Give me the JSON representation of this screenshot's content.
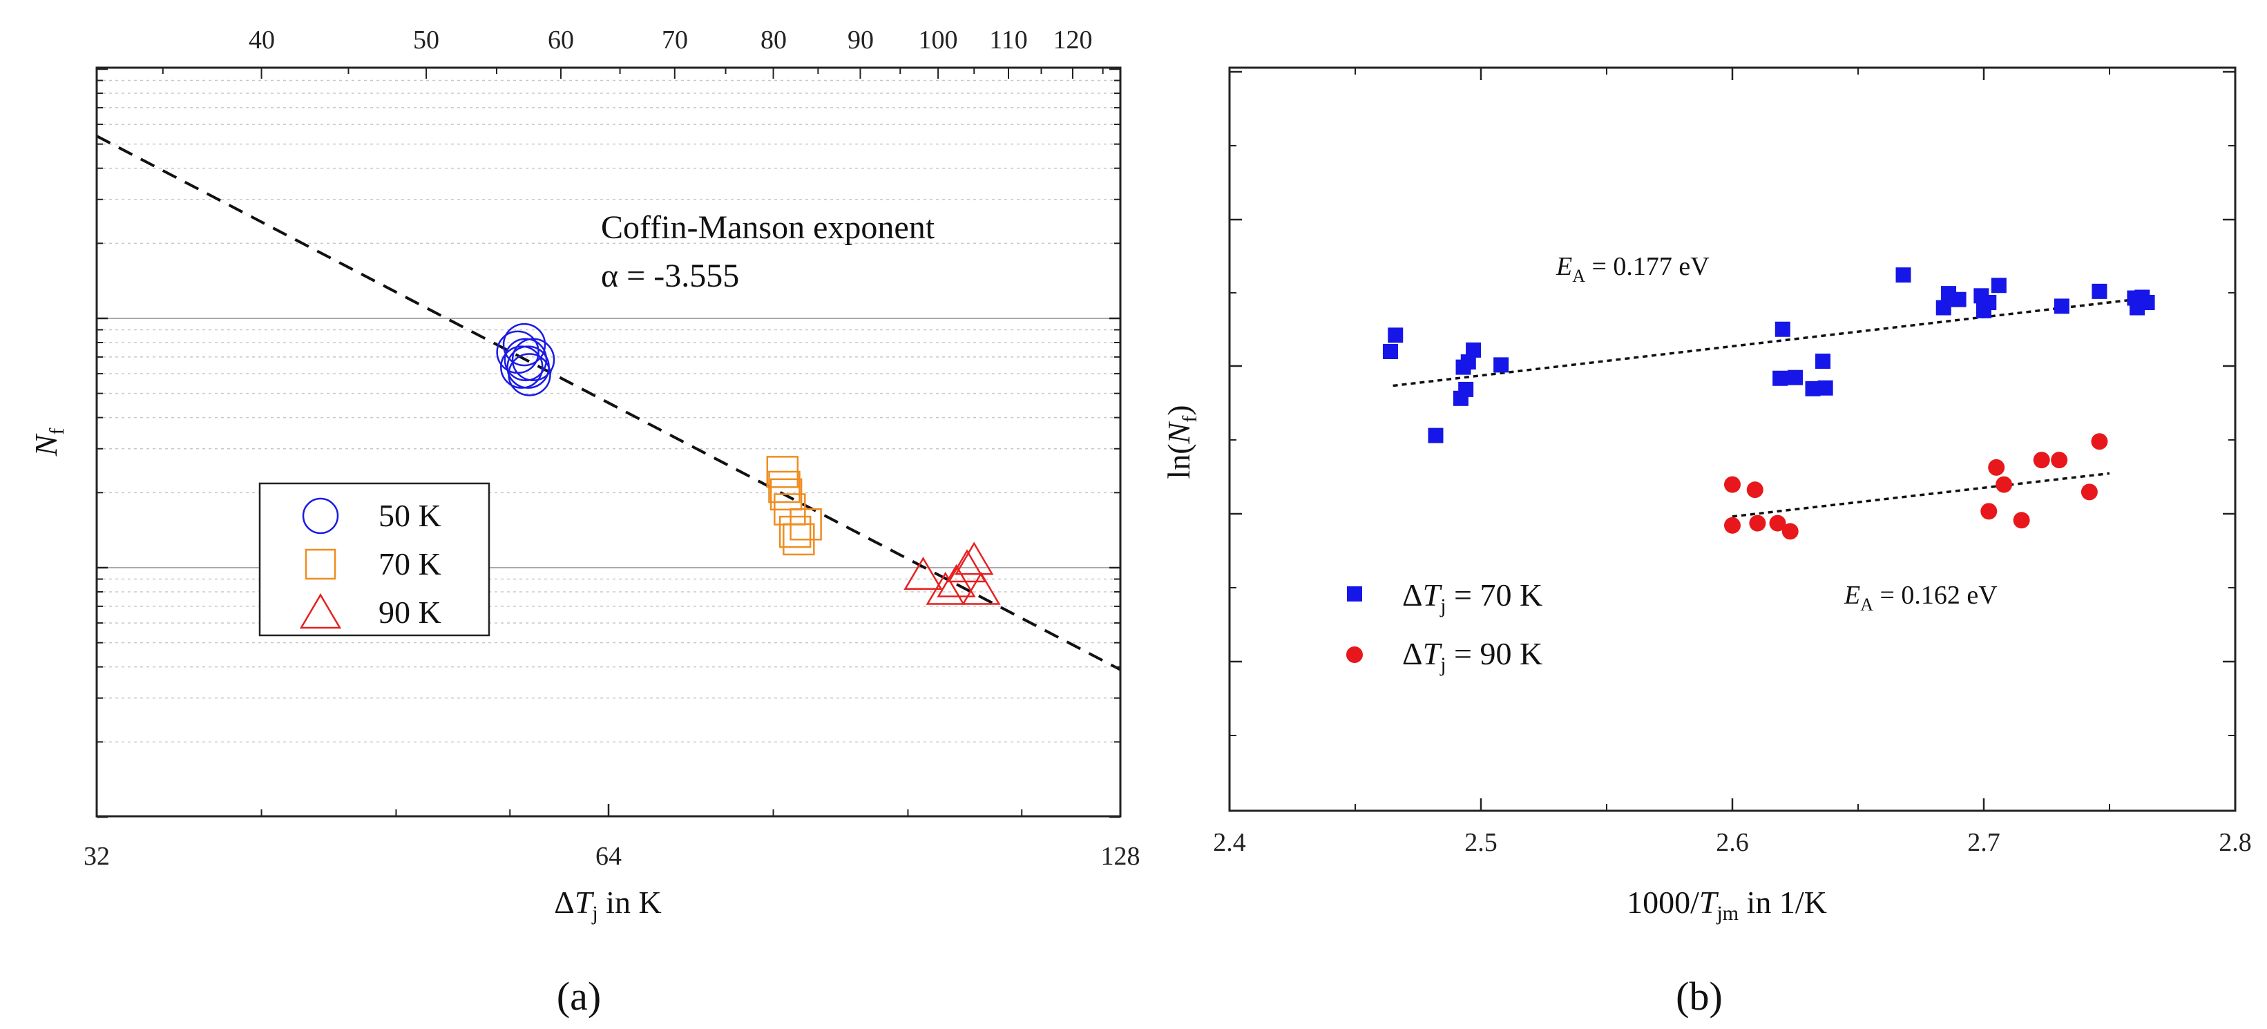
{
  "colors": {
    "blue": "#1a1ae6",
    "orange": "#f08c1e",
    "red": "#e62020"
  },
  "chart_data": [
    {
      "panel_label": "(a)",
      "type": "scatter",
      "title": "",
      "xlabel": "ΔTj in K",
      "ylabel": "Nf",
      "x_scale": "log2",
      "xlim": [
        32,
        128
      ],
      "x_ticks": [
        "32",
        "64",
        "128"
      ],
      "top_x_ticks": [
        "40",
        "50",
        "60",
        "70",
        "80",
        "90",
        "100",
        "110",
        "120"
      ],
      "y_tick_labels_shown": false,
      "annotation": {
        "line1": "Coffin-Manson exponent",
        "line2": "α = -3.555"
      },
      "fit_exponent": -3.555,
      "legend": {
        "position": "left-center",
        "entries": [
          "50 K",
          "70 K",
          "90 K"
        ]
      },
      "series": [
        {
          "name": "50 K",
          "marker": "circle",
          "color": "blue",
          "x": [
            56.6,
            56.9,
            57.2,
            57.5,
            57.8,
            57.1,
            57.4
          ],
          "y_rel": [
            0.62,
            0.6,
            0.61,
            0.59,
            0.61,
            0.63,
            0.6
          ]
        },
        {
          "name": "70 K",
          "marker": "square",
          "color": "orange",
          "x": [
            81.0,
            81.2,
            81.8,
            82.4,
            82.8,
            83.6,
            81.4
          ],
          "y_rel": [
            0.46,
            0.44,
            0.41,
            0.38,
            0.37,
            0.39,
            0.43
          ]
        },
        {
          "name": "90 K",
          "marker": "triangle",
          "color": "red",
          "x": [
            98.0,
            101.0,
            102.5,
            104.0,
            105.0,
            106.0
          ],
          "y_rel": [
            0.32,
            0.3,
            0.31,
            0.33,
            0.34,
            0.3
          ]
        }
      ]
    },
    {
      "panel_label": "(b)",
      "type": "scatter",
      "title": "",
      "xlabel": "1000/Tjm in 1/K",
      "ylabel": "ln(Nf)",
      "xlim": [
        2.4,
        2.8
      ],
      "x_ticks": [
        "2.4",
        "2.5",
        "2.6",
        "2.7",
        "2.8"
      ],
      "y_tick_labels_shown": false,
      "legend": {
        "position": "bottom-left",
        "entries": [
          "ΔTj = 70 K",
          "ΔTj = 90 K"
        ]
      },
      "annotations": [
        "EA = 0.177 eV",
        "EA = 0.162 eV"
      ],
      "series": [
        {
          "name": "ΔTj = 70 K",
          "marker": "square",
          "color": "blue",
          "x": [
            2.464,
            2.466,
            2.482,
            2.492,
            2.493,
            2.494,
            2.495,
            2.497,
            2.508,
            2.619,
            2.62,
            2.625,
            2.632,
            2.636,
            2.637,
            2.668,
            2.684,
            2.686,
            2.69,
            2.699,
            2.7,
            2.702,
            2.706,
            2.731,
            2.746,
            2.76,
            2.761,
            2.763,
            2.765
          ],
          "y_rel": [
            0.618,
            0.64,
            0.505,
            0.555,
            0.597,
            0.567,
            0.604,
            0.62,
            0.6,
            0.582,
            0.648,
            0.583,
            0.568,
            0.605,
            0.569,
            0.721,
            0.677,
            0.696,
            0.688,
            0.693,
            0.673,
            0.684,
            0.707,
            0.679,
            0.699,
            0.69,
            0.677,
            0.691,
            0.684
          ],
          "fit": {
            "x": [
              2.465,
              2.765
            ],
            "y_rel": [
              0.572,
              0.69
            ]
          }
        },
        {
          "name": "ΔTj = 90 K",
          "marker": "circle",
          "color": "red",
          "x": [
            2.6,
            2.6,
            2.609,
            2.61,
            2.618,
            2.623,
            2.702,
            2.705,
            2.708,
            2.715,
            2.723,
            2.73,
            2.742,
            2.746
          ],
          "y_rel": [
            0.439,
            0.384,
            0.432,
            0.387,
            0.387,
            0.376,
            0.403,
            0.462,
            0.439,
            0.391,
            0.472,
            0.472,
            0.429,
            0.497
          ],
          "fit": {
            "x": [
              2.6,
              2.75
            ],
            "y_rel": [
              0.396,
              0.454
            ]
          }
        }
      ]
    }
  ]
}
